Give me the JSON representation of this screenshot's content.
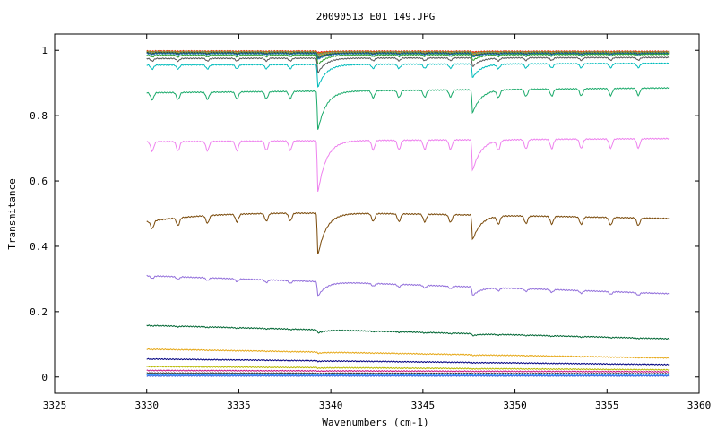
{
  "chart_data": {
    "type": "line",
    "title": "20090513_E01_149.JPG",
    "xlabel": "Wavenumbers (cm-1)",
    "ylabel": "Transmitance",
    "xlim": [
      3325,
      3360
    ],
    "ylim": [
      -0.05,
      1.05
    ],
    "x_ticks": [
      3325,
      3330,
      3335,
      3340,
      3345,
      3350,
      3355,
      3360
    ],
    "x_tick_labels": [
      "3325",
      "3330",
      "3335",
      "3340",
      "3345",
      "3350",
      "3355",
      "3360"
    ],
    "y_ticks": [
      0,
      0.2,
      0.4,
      0.6,
      0.8,
      1
    ],
    "y_tick_labels": [
      "0",
      "0.2",
      "0.4",
      "0.6",
      "0.8",
      "1"
    ],
    "grid": false,
    "legend": false,
    "x_range": [
      3330,
      3358.4
    ],
    "main_dip_positions": [
      3339.3,
      3347.7
    ],
    "minor_dip_positions": [
      3330.3,
      3331.7,
      3333.3,
      3334.9,
      3336.5,
      3337.8,
      3342.3,
      3343.7,
      3345.1,
      3346.5,
      3349.1,
      3350.6,
      3352.0,
      3353.6,
      3355.2,
      3356.7
    ],
    "series": [
      {
        "color": "#e31a1c",
        "start": 0.998,
        "end": 0.997,
        "dip_scale": 0.004
      },
      {
        "color": "#d95f02",
        "start": 0.997,
        "end": 0.996,
        "dip_scale": 0.006
      },
      {
        "color": "#66a61e",
        "start": 0.996,
        "end": 0.995,
        "dip_scale": 0.008
      },
      {
        "color": "#7570b3",
        "start": 0.995,
        "end": 0.994,
        "dip_scale": 0.01
      },
      {
        "color": "#e6ab02",
        "start": 0.994,
        "end": 0.993,
        "dip_scale": 0.012
      },
      {
        "color": "#1b9e77",
        "start": 0.993,
        "end": 0.992,
        "dip_scale": 0.014
      },
      {
        "color": "#333333",
        "start": 0.992,
        "end": 0.991,
        "dip_scale": 0.016
      },
      {
        "color": "#1f78b4",
        "start": 0.99,
        "end": 0.99,
        "dip_scale": 0.018
      },
      {
        "color": "#2ca02c",
        "start": 0.985,
        "end": 0.988,
        "dip_scale": 0.03
      },
      {
        "color": "#555555",
        "start": 0.975,
        "end": 0.978,
        "dip_scale": 0.045
      },
      {
        "color": "#00bcbc",
        "start": 0.955,
        "end": 0.96,
        "dip_scale": 0.07
      },
      {
        "color": "#1aaa6a",
        "start": 0.87,
        "end": 0.885,
        "dip_scale": 0.12
      },
      {
        "color": "#ee82ee",
        "start": 0.72,
        "end": 0.73,
        "dip_scale": 0.16
      },
      {
        "color": "#7a4a0a",
        "start": 0.515,
        "end": 0.485,
        "dip_scale": 0.13
      },
      {
        "color": "#9370db",
        "start": 0.31,
        "end": 0.255,
        "dip_scale": 0.045
      },
      {
        "color": "#006633",
        "start": 0.158,
        "end": 0.117,
        "dip_scale": 0.01
      },
      {
        "color": "#e6a817",
        "start": 0.085,
        "end": 0.058,
        "dip_scale": 0.004
      },
      {
        "color": "#000080",
        "start": 0.055,
        "end": 0.038,
        "dip_scale": 0.002
      },
      {
        "color": "#b8b800",
        "start": 0.032,
        "end": 0.022,
        "dip_scale": 0.002
      },
      {
        "color": "#c71585",
        "start": 0.02,
        "end": 0.016,
        "dip_scale": 0.001
      },
      {
        "color": "#333333",
        "start": 0.012,
        "end": 0.01,
        "dip_scale": 0.001
      },
      {
        "color": "#1e90ff",
        "start": 0.006,
        "end": 0.005,
        "dip_scale": 0.0
      },
      {
        "color": "#4169e1",
        "start": 0.003,
        "end": 0.003,
        "dip_scale": 0.0
      }
    ]
  }
}
